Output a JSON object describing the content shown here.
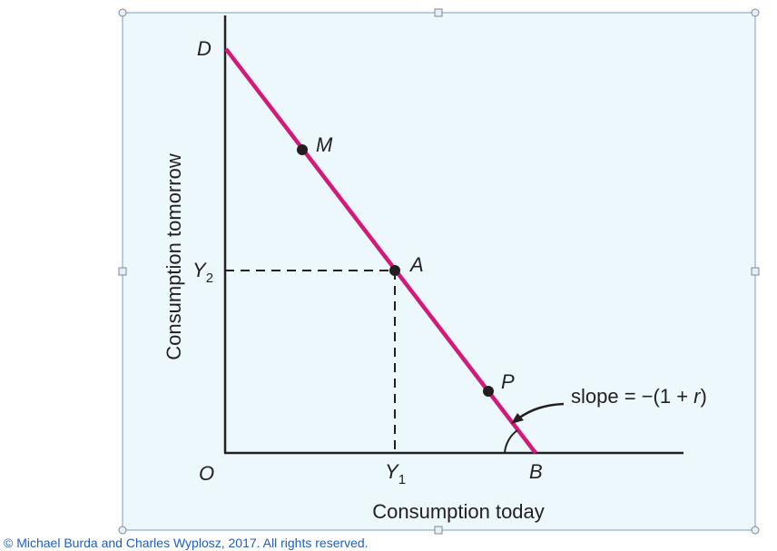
{
  "figure": {
    "axis_labels": {
      "x": "Consumption today",
      "y": "Consumption tomorrow"
    },
    "axis_ticks": {
      "origin": "O",
      "x_tick": "Y",
      "x_tick_sub": "1",
      "y_tick": "Y",
      "y_tick_sub": "2",
      "x_end": "B",
      "y_end": "D"
    },
    "points": [
      {
        "label": "M"
      },
      {
        "label": "A"
      },
      {
        "label": "P"
      }
    ],
    "slope_annotation": {
      "prefix": "slope = −(1 + ",
      "var": "r",
      "suffix": ")"
    },
    "colors": {
      "background": "#ecf8fc",
      "budget_line": "#d4197a",
      "axes": "#231f20",
      "frame_border": "#7f9db9",
      "copyright": "#1f5fbf"
    }
  },
  "copyright": "© Michael Burda and Charles Wyplosz, 2017. All rights reserved."
}
